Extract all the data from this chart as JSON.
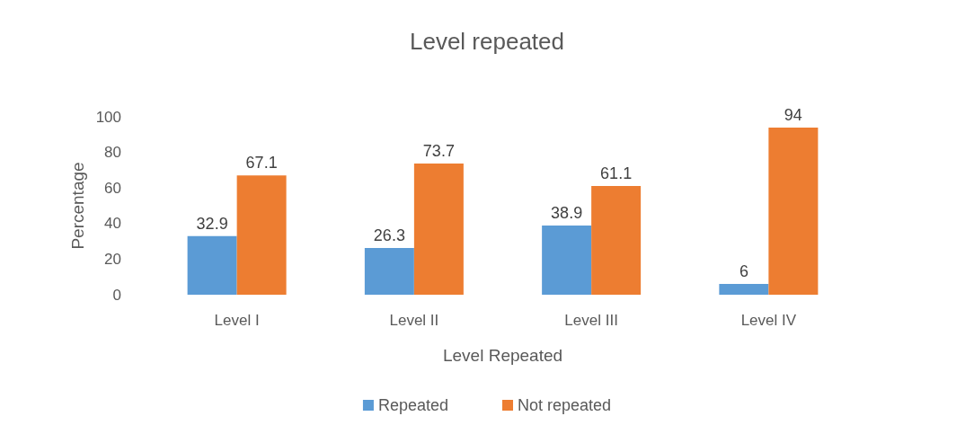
{
  "chart_data": {
    "type": "bar",
    "title": "Level repeated",
    "xlabel": "Level Repeated",
    "ylabel": "Percentage",
    "categories": [
      "Level I",
      "Level II",
      "Level III",
      "Level IV"
    ],
    "series": [
      {
        "name": "Repeated",
        "color": "#5b9bd5",
        "values": [
          32.9,
          26.3,
          38.9,
          6
        ]
      },
      {
        "name": "Not repeated",
        "color": "#ed7d31",
        "values": [
          67.1,
          73.7,
          61.1,
          94
        ]
      }
    ],
    "ylim": [
      0,
      100
    ],
    "yticks": [
      0,
      20,
      40,
      60,
      80,
      100
    ],
    "grid": false,
    "legend": "bottom",
    "data_labels": true
  }
}
